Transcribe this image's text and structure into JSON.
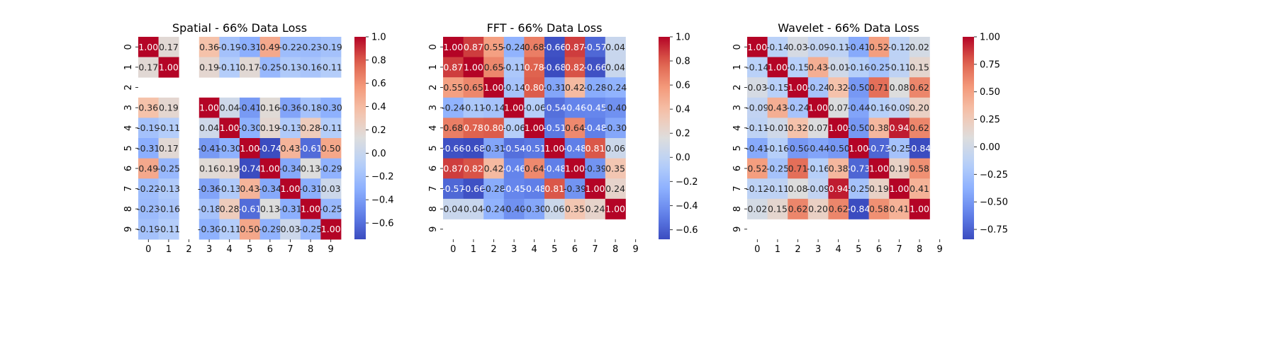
{
  "chart_data": [
    {
      "type": "heatmap",
      "title": "Spatial - 66% Data Loss",
      "row_labels": [
        "0",
        "1",
        "2",
        "3",
        "4",
        "5",
        "6",
        "7",
        "8",
        "9"
      ],
      "col_labels": [
        "0",
        "1",
        "2",
        "3",
        "4",
        "5",
        "6",
        "7",
        "8",
        "9"
      ],
      "colormap": "coolwarm",
      "vmin": -0.74,
      "vmax": 1.0,
      "colorbar_ticks": [
        -0.6,
        -0.4,
        -0.2,
        0.0,
        0.2,
        0.4,
        0.6,
        0.8,
        1.0
      ],
      "colorbar_tick_labels": [
        "−0.6",
        "−0.4",
        "−0.2",
        "0.0",
        "0.2",
        "0.4",
        "0.6",
        "0.8",
        "1.0"
      ],
      "values": [
        [
          1.0,
          0.17,
          null,
          0.36,
          -0.19,
          -0.31,
          0.49,
          -0.22,
          -0.23,
          -0.19
        ],
        [
          0.17,
          1.0,
          null,
          0.19,
          -0.11,
          0.17,
          -0.25,
          -0.13,
          -0.16,
          -0.11
        ],
        [
          null,
          null,
          null,
          null,
          null,
          null,
          null,
          null,
          null,
          null
        ],
        [
          0.36,
          0.19,
          null,
          1.0,
          0.04,
          -0.41,
          0.16,
          -0.36,
          -0.18,
          -0.3
        ],
        [
          -0.19,
          -0.11,
          null,
          0.04,
          1.0,
          -0.3,
          0.19,
          -0.13,
          0.28,
          -0.11
        ],
        [
          -0.31,
          0.17,
          null,
          -0.41,
          -0.3,
          1.0,
          -0.74,
          0.43,
          -0.61,
          0.5
        ],
        [
          0.49,
          -0.25,
          null,
          0.16,
          0.19,
          -0.74,
          1.0,
          -0.34,
          0.13,
          -0.29
        ],
        [
          -0.22,
          -0.13,
          null,
          -0.36,
          -0.13,
          0.43,
          -0.34,
          1.0,
          -0.31,
          0.03
        ],
        [
          -0.23,
          -0.16,
          null,
          -0.18,
          0.28,
          -0.61,
          0.13,
          -0.31,
          1.0,
          -0.25
        ],
        [
          -0.19,
          -0.11,
          null,
          -0.3,
          -0.11,
          0.5,
          -0.29,
          0.03,
          -0.25,
          1.0
        ]
      ]
    },
    {
      "type": "heatmap",
      "title": "FFT - 66% Data Loss",
      "row_labels": [
        "0",
        "1",
        "2",
        "3",
        "4",
        "5",
        "6",
        "7",
        "8",
        "9"
      ],
      "col_labels": [
        "0",
        "1",
        "2",
        "3",
        "4",
        "5",
        "6",
        "7",
        "8",
        "9"
      ],
      "colormap": "coolwarm",
      "vmin": -0.68,
      "vmax": 1.0,
      "colorbar_ticks": [
        -0.6,
        -0.4,
        -0.2,
        0.0,
        0.2,
        0.4,
        0.6,
        0.8,
        1.0
      ],
      "colorbar_tick_labels": [
        "−0.6",
        "−0.4",
        "−0.2",
        "0.0",
        "0.2",
        "0.4",
        "0.6",
        "0.8",
        "1.0"
      ],
      "values": [
        [
          1.0,
          0.87,
          0.55,
          -0.24,
          0.68,
          -0.66,
          0.87,
          -0.57,
          0.04,
          null
        ],
        [
          0.87,
          1.0,
          0.65,
          -0.11,
          0.78,
          -0.68,
          0.82,
          -0.66,
          0.04,
          null
        ],
        [
          0.55,
          0.65,
          1.0,
          -0.14,
          0.8,
          -0.31,
          0.42,
          -0.28,
          -0.24,
          null
        ],
        [
          -0.24,
          -0.11,
          -0.14,
          1.0,
          -0.06,
          -0.54,
          -0.46,
          -0.45,
          -0.4,
          null
        ],
        [
          0.68,
          0.78,
          0.8,
          -0.06,
          1.0,
          -0.51,
          0.64,
          -0.48,
          -0.3,
          null
        ],
        [
          -0.66,
          -0.68,
          -0.31,
          -0.54,
          -0.51,
          1.0,
          -0.48,
          0.81,
          0.06,
          null
        ],
        [
          0.87,
          0.82,
          0.42,
          -0.46,
          0.64,
          -0.48,
          1.0,
          -0.39,
          0.35,
          null
        ],
        [
          -0.57,
          -0.66,
          -0.28,
          -0.45,
          -0.48,
          0.81,
          -0.39,
          1.0,
          0.24,
          null
        ],
        [
          0.04,
          0.04,
          -0.24,
          -0.4,
          -0.3,
          0.06,
          0.35,
          0.24,
          1.0,
          null
        ],
        [
          null,
          null,
          null,
          null,
          null,
          null,
          null,
          null,
          null,
          null
        ]
      ]
    },
    {
      "type": "heatmap",
      "title": "Wavelet - 66% Data Loss",
      "row_labels": [
        "0",
        "1",
        "2",
        "3",
        "4",
        "5",
        "6",
        "7",
        "8",
        "9"
      ],
      "col_labels": [
        "0",
        "1",
        "2",
        "3",
        "4",
        "5",
        "6",
        "7",
        "8",
        "9"
      ],
      "colormap": "coolwarm",
      "vmin": -0.84,
      "vmax": 1.0,
      "colorbar_ticks": [
        -0.75,
        -0.5,
        -0.25,
        0.0,
        0.25,
        0.5,
        0.75,
        1.0
      ],
      "colorbar_tick_labels": [
        "−0.75",
        "−0.50",
        "−0.25",
        "0.00",
        "0.25",
        "0.50",
        "0.75",
        "1.00"
      ],
      "values": [
        [
          1.0,
          -0.14,
          0.03,
          -0.09,
          -0.11,
          -0.41,
          0.52,
          -0.12,
          0.02,
          null
        ],
        [
          -0.14,
          1.0,
          -0.15,
          0.43,
          -0.01,
          -0.16,
          -0.25,
          -0.11,
          0.15,
          null
        ],
        [
          0.03,
          -0.15,
          1.0,
          -0.24,
          0.32,
          -0.5,
          0.71,
          0.08,
          0.62,
          null
        ],
        [
          -0.09,
          0.43,
          -0.24,
          1.0,
          0.07,
          -0.44,
          -0.16,
          -0.09,
          0.2,
          null
        ],
        [
          -0.11,
          -0.01,
          0.32,
          0.07,
          1.0,
          -0.5,
          0.38,
          0.94,
          0.62,
          null
        ],
        [
          -0.41,
          -0.16,
          -0.5,
          -0.44,
          -0.5,
          1.0,
          -0.73,
          -0.25,
          -0.84,
          null
        ],
        [
          0.52,
          -0.25,
          0.71,
          -0.16,
          0.38,
          -0.73,
          1.0,
          0.19,
          0.58,
          null
        ],
        [
          -0.12,
          -0.11,
          0.08,
          -0.09,
          0.94,
          -0.25,
          0.19,
          1.0,
          0.41,
          null
        ],
        [
          0.02,
          0.15,
          0.62,
          0.2,
          0.62,
          -0.84,
          0.58,
          0.41,
          1.0,
          null
        ],
        [
          null,
          null,
          null,
          null,
          null,
          null,
          null,
          null,
          null,
          null
        ]
      ]
    }
  ]
}
